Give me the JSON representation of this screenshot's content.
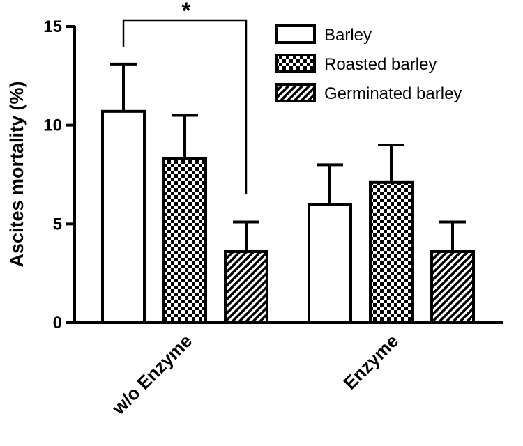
{
  "chart_data": {
    "type": "bar",
    "ylabel": "Ascites mortality (%)",
    "ylim": [
      0,
      15
    ],
    "yticks": [
      "0",
      "5",
      "10",
      "15"
    ],
    "categories": [
      "w/o Enzyme",
      "Enzyme"
    ],
    "series": [
      {
        "name": "Barley",
        "values": [
          10.7,
          6.0
        ],
        "errors": [
          2.4,
          2.0
        ],
        "fill": "#ffffff",
        "pattern": "none"
      },
      {
        "name": "Roasted barley",
        "values": [
          8.3,
          7.1
        ],
        "errors": [
          2.2,
          1.9
        ],
        "fill": "#000000",
        "pattern": "checker"
      },
      {
        "name": "Germinated barley",
        "values": [
          3.6,
          3.6
        ],
        "errors": [
          1.5,
          1.5
        ],
        "fill": "#000000",
        "pattern": "diagonal"
      }
    ],
    "annotations": [
      {
        "text": "*",
        "between": [
          "w/o Enzyme / Barley",
          "w/o Enzyme / Germinated barley"
        ]
      }
    ],
    "legend_position": "top-right",
    "grid": false
  }
}
